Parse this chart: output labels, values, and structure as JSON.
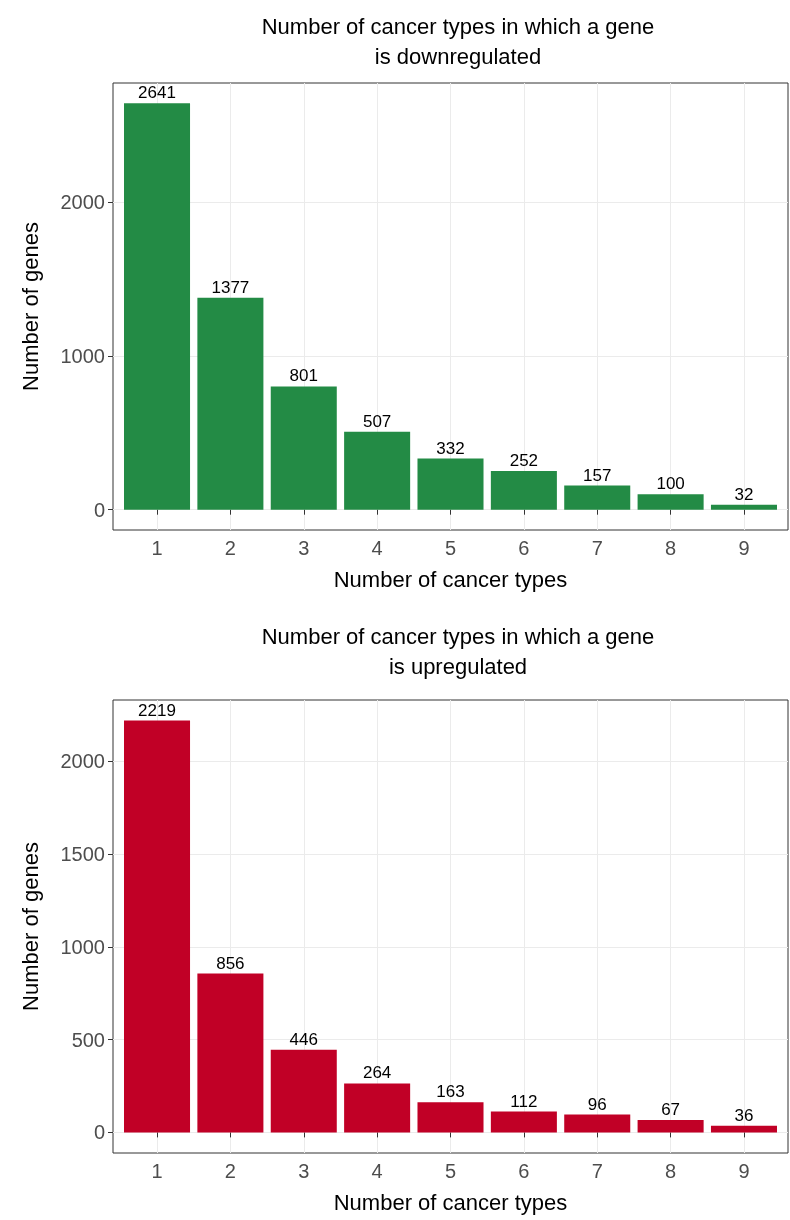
{
  "chart_data": [
    {
      "type": "bar",
      "title": "Number of cancer types in which a gene\nis downregulated",
      "xlabel": "Number of cancer types",
      "ylabel": "Number of genes",
      "x": [
        1,
        2,
        3,
        4,
        5,
        6,
        7,
        8,
        9
      ],
      "xlim": [
        0.4,
        9.6
      ],
      "xticks": [
        1,
        2,
        3,
        4,
        5,
        6,
        7,
        8,
        9
      ],
      "ylim": [
        -132,
        2773
      ],
      "yticks": [
        0,
        1000,
        2000
      ],
      "grid": true,
      "data_labels": true,
      "series": [
        {
          "color": "#238b45",
          "values": [
            2641,
            1377,
            801,
            507,
            332,
            252,
            157,
            100,
            32
          ]
        }
      ]
    },
    {
      "type": "bar",
      "title": "Number of cancer types in which a gene\nis upregulated",
      "xlabel": "Number of cancer types",
      "ylabel": "Number of genes",
      "x": [
        1,
        2,
        3,
        4,
        5,
        6,
        7,
        8,
        9
      ],
      "xlim": [
        0.4,
        9.6
      ],
      "xticks": [
        1,
        2,
        3,
        4,
        5,
        6,
        7,
        8,
        9
      ],
      "ylim": [
        -111,
        2330
      ],
      "yticks": [
        0,
        500,
        1000,
        1500,
        2000
      ],
      "grid": true,
      "data_labels": true,
      "series": [
        {
          "color": "#c10026",
          "values": [
            2219,
            856,
            446,
            264,
            163,
            112,
            96,
            67,
            36
          ]
        }
      ]
    }
  ]
}
